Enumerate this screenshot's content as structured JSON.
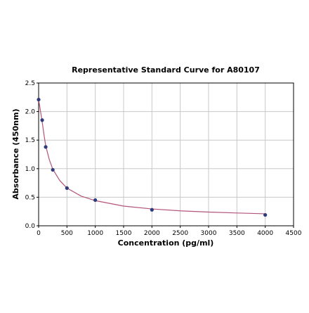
{
  "chart_data": {
    "type": "scatter",
    "title": "Representative Standard Curve for A80107",
    "xlabel": "Concentration (pg/ml)",
    "ylabel": "Absorbance (450nm)",
    "xlim": [
      0,
      4500
    ],
    "ylim": [
      0,
      2.5
    ],
    "xticks": [
      0,
      500,
      1000,
      1500,
      2000,
      2500,
      3000,
      3500,
      4000,
      4500
    ],
    "yticks": [
      0.0,
      0.5,
      1.0,
      1.5,
      2.0,
      2.5
    ],
    "xtick_labels": [
      "0",
      "500",
      "1000",
      "1500",
      "2000",
      "2500",
      "3000",
      "3500",
      "4000",
      "4500"
    ],
    "ytick_labels": [
      "0.0",
      "0.5",
      "1.0",
      "1.5",
      "2.0",
      "2.5"
    ],
    "grid": true,
    "legend": "none",
    "series": [
      {
        "kind": "points",
        "color": "#2e3a7a",
        "x": [
          0,
          62.5,
          125,
          250,
          500,
          1000,
          2000,
          4000
        ],
        "y": [
          2.21,
          1.85,
          1.38,
          0.98,
          0.66,
          0.45,
          0.28,
          0.19
        ]
      },
      {
        "kind": "fit-curve",
        "color": "#b3547a",
        "x": [
          0,
          31,
          62.5,
          94,
          125,
          188,
          250,
          375,
          500,
          750,
          1000,
          1500,
          2000,
          2500,
          3000,
          3500,
          4000
        ],
        "y": [
          2.21,
          2.02,
          1.82,
          1.6,
          1.4,
          1.16,
          0.99,
          0.79,
          0.66,
          0.52,
          0.44,
          0.345,
          0.295,
          0.262,
          0.24,
          0.224,
          0.21
        ]
      }
    ]
  }
}
